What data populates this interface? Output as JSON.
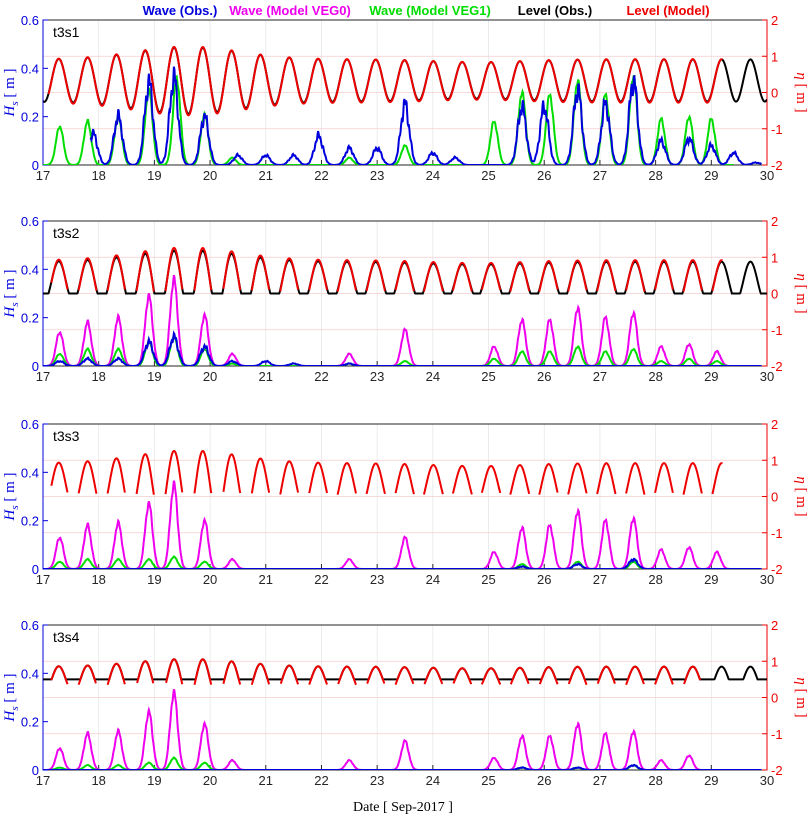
{
  "chart_data": {
    "type": "line",
    "legend": [
      {
        "label": "Wave (Obs.)",
        "color": "#0000dd"
      },
      {
        "label": "Wave (Model VEG0)",
        "color": "#ee00ee"
      },
      {
        "label": "Wave (Model VEG1)",
        "color": "#00dd00"
      },
      {
        "label": "Level (Obs.)",
        "color": "#000000"
      },
      {
        "label": "Level (Model)",
        "color": "#ee0000"
      }
    ],
    "xlabel": "Date [ Sep-2017 ]",
    "xlim": [
      17,
      30
    ],
    "xticks": [
      "17",
      "18",
      "19",
      "20",
      "21",
      "22",
      "23",
      "24",
      "25",
      "26",
      "27",
      "28",
      "29",
      "30"
    ],
    "ylabel_left": "H",
    "ylabel_left_sub": "s",
    "ylabel_left_unit": "[ m ]",
    "ylabel_right": "η",
    "ylabel_right_unit": "[ m ]",
    "ylim_left": [
      0,
      0.6
    ],
    "yticks_left": [
      "0",
      "0.2",
      "0.4",
      "0.6"
    ],
    "ylim_right": [
      -2,
      2
    ],
    "yticks_right": [
      "-2",
      "-1",
      "0",
      "1",
      "2"
    ],
    "grid": true,
    "panels": [
      {
        "title": "t3s1",
        "wave_obs_peaks": [
          {
            "x": 17.9,
            "h": 0.13
          },
          {
            "x": 18.35,
            "h": 0.2
          },
          {
            "x": 18.9,
            "h": 0.34
          },
          {
            "x": 19.35,
            "h": 0.36
          },
          {
            "x": 19.9,
            "h": 0.2
          },
          {
            "x": 20.5,
            "h": 0.04
          },
          {
            "x": 21.0,
            "h": 0.04
          },
          {
            "x": 21.5,
            "h": 0.04
          },
          {
            "x": 21.95,
            "h": 0.12
          },
          {
            "x": 22.5,
            "h": 0.07
          },
          {
            "x": 23.0,
            "h": 0.07
          },
          {
            "x": 23.5,
            "h": 0.25
          },
          {
            "x": 24.0,
            "h": 0.05
          },
          {
            "x": 24.4,
            "h": 0.03
          },
          {
            "x": 25.6,
            "h": 0.24
          },
          {
            "x": 26.0,
            "h": 0.24
          },
          {
            "x": 26.6,
            "h": 0.31
          },
          {
            "x": 27.1,
            "h": 0.25
          },
          {
            "x": 27.6,
            "h": 0.35
          },
          {
            "x": 28.1,
            "h": 0.1
          },
          {
            "x": 28.6,
            "h": 0.11
          },
          {
            "x": 29.0,
            "h": 0.08
          },
          {
            "x": 29.4,
            "h": 0.05
          },
          {
            "x": 29.8,
            "h": 0.01
          }
        ],
        "wave_veg1_peaks": [
          {
            "x": 17.3,
            "h": 0.16
          },
          {
            "x": 17.8,
            "h": 0.18
          },
          {
            "x": 18.35,
            "h": 0.2
          },
          {
            "x": 18.9,
            "h": 0.31
          },
          {
            "x": 19.4,
            "h": 0.36
          },
          {
            "x": 19.9,
            "h": 0.21
          },
          {
            "x": 20.4,
            "h": 0.03
          },
          {
            "x": 22.5,
            "h": 0.03
          },
          {
            "x": 23.5,
            "h": 0.08
          },
          {
            "x": 25.1,
            "h": 0.18
          },
          {
            "x": 25.6,
            "h": 0.3
          },
          {
            "x": 26.1,
            "h": 0.29
          },
          {
            "x": 26.6,
            "h": 0.35
          },
          {
            "x": 27.1,
            "h": 0.29
          },
          {
            "x": 27.6,
            "h": 0.37
          },
          {
            "x": 28.1,
            "h": 0.19
          },
          {
            "x": 28.6,
            "h": 0.2
          },
          {
            "x": 29.0,
            "h": 0.19
          }
        ],
        "wave_veg0_peaks": [],
        "level_obs": {
          "mode": "continuous",
          "end": 30.0
        },
        "level_model": {
          "mode": "continuous",
          "end": 29.2
        }
      },
      {
        "title": "t3s2",
        "wave_obs_peaks": [
          {
            "x": 17.3,
            "h": 0.02
          },
          {
            "x": 17.8,
            "h": 0.03
          },
          {
            "x": 18.35,
            "h": 0.03
          },
          {
            "x": 18.9,
            "h": 0.1
          },
          {
            "x": 19.35,
            "h": 0.12
          },
          {
            "x": 19.9,
            "h": 0.08
          },
          {
            "x": 20.4,
            "h": 0.02
          },
          {
            "x": 21.0,
            "h": 0.02
          },
          {
            "x": 21.5,
            "h": 0.01
          },
          {
            "x": 22.5,
            "h": 0.01
          }
        ],
        "wave_veg1_peaks": [
          {
            "x": 17.3,
            "h": 0.05
          },
          {
            "x": 17.8,
            "h": 0.07
          },
          {
            "x": 18.35,
            "h": 0.07
          },
          {
            "x": 18.9,
            "h": 0.1
          },
          {
            "x": 19.35,
            "h": 0.12
          },
          {
            "x": 19.9,
            "h": 0.07
          },
          {
            "x": 20.4,
            "h": 0.01
          },
          {
            "x": 22.5,
            "h": 0.01
          },
          {
            "x": 23.5,
            "h": 0.02
          },
          {
            "x": 25.1,
            "h": 0.03
          },
          {
            "x": 25.6,
            "h": 0.06
          },
          {
            "x": 26.1,
            "h": 0.06
          },
          {
            "x": 26.6,
            "h": 0.08
          },
          {
            "x": 27.1,
            "h": 0.06
          },
          {
            "x": 27.6,
            "h": 0.07
          },
          {
            "x": 28.1,
            "h": 0.02
          },
          {
            "x": 28.6,
            "h": 0.03
          },
          {
            "x": 29.1,
            "h": 0.02
          }
        ],
        "wave_veg0_peaks": [
          {
            "x": 17.3,
            "h": 0.14
          },
          {
            "x": 17.8,
            "h": 0.18
          },
          {
            "x": 18.35,
            "h": 0.2
          },
          {
            "x": 18.9,
            "h": 0.29
          },
          {
            "x": 19.35,
            "h": 0.36
          },
          {
            "x": 19.9,
            "h": 0.21
          },
          {
            "x": 20.4,
            "h": 0.05
          },
          {
            "x": 22.5,
            "h": 0.05
          },
          {
            "x": 23.5,
            "h": 0.15
          },
          {
            "x": 25.1,
            "h": 0.08
          },
          {
            "x": 25.6,
            "h": 0.19
          },
          {
            "x": 26.1,
            "h": 0.19
          },
          {
            "x": 26.6,
            "h": 0.24
          },
          {
            "x": 27.1,
            "h": 0.2
          },
          {
            "x": 27.6,
            "h": 0.22
          },
          {
            "x": 28.1,
            "h": 0.08
          },
          {
            "x": 28.6,
            "h": 0.09
          },
          {
            "x": 29.1,
            "h": 0.06
          }
        ],
        "level_obs": {
          "mode": "clipped",
          "floor": 0.0,
          "end": 30.0
        },
        "level_model": {
          "mode": "segments",
          "end": 29.2
        }
      },
      {
        "title": "t3s3",
        "wave_obs_peaks": [
          {
            "x": 25.6,
            "h": 0.01
          },
          {
            "x": 26.6,
            "h": 0.02
          },
          {
            "x": 27.6,
            "h": 0.04
          }
        ],
        "wave_veg1_peaks": [
          {
            "x": 17.3,
            "h": 0.03
          },
          {
            "x": 17.8,
            "h": 0.04
          },
          {
            "x": 18.35,
            "h": 0.04
          },
          {
            "x": 18.9,
            "h": 0.04
          },
          {
            "x": 19.35,
            "h": 0.05
          },
          {
            "x": 19.9,
            "h": 0.03
          },
          {
            "x": 25.6,
            "h": 0.02
          },
          {
            "x": 26.6,
            "h": 0.03
          },
          {
            "x": 27.6,
            "h": 0.03
          }
        ],
        "wave_veg0_peaks": [
          {
            "x": 17.3,
            "h": 0.13
          },
          {
            "x": 17.8,
            "h": 0.18
          },
          {
            "x": 18.35,
            "h": 0.19
          },
          {
            "x": 18.9,
            "h": 0.27
          },
          {
            "x": 19.35,
            "h": 0.35
          },
          {
            "x": 19.9,
            "h": 0.2
          },
          {
            "x": 20.4,
            "h": 0.04
          },
          {
            "x": 22.5,
            "h": 0.04
          },
          {
            "x": 23.5,
            "h": 0.13
          },
          {
            "x": 25.1,
            "h": 0.07
          },
          {
            "x": 25.6,
            "h": 0.17
          },
          {
            "x": 26.1,
            "h": 0.18
          },
          {
            "x": 26.6,
            "h": 0.24
          },
          {
            "x": 27.1,
            "h": 0.2
          },
          {
            "x": 27.6,
            "h": 0.21
          },
          {
            "x": 28.1,
            "h": 0.08
          },
          {
            "x": 28.6,
            "h": 0.09
          },
          {
            "x": 29.1,
            "h": 0.07
          }
        ],
        "level_obs": {
          "mode": "none",
          "end": 30.0
        },
        "level_model": {
          "mode": "segments",
          "end": 29.2
        }
      },
      {
        "title": "t3s4",
        "wave_obs_peaks": [
          {
            "x": 25.6,
            "h": 0.01
          },
          {
            "x": 26.6,
            "h": 0.01
          },
          {
            "x": 27.6,
            "h": 0.02
          }
        ],
        "wave_veg1_peaks": [
          {
            "x": 17.3,
            "h": 0.01
          },
          {
            "x": 17.8,
            "h": 0.02
          },
          {
            "x": 18.35,
            "h": 0.02
          },
          {
            "x": 18.9,
            "h": 0.03
          },
          {
            "x": 19.35,
            "h": 0.05
          },
          {
            "x": 19.9,
            "h": 0.03
          },
          {
            "x": 25.6,
            "h": 0.01
          },
          {
            "x": 26.6,
            "h": 0.01
          },
          {
            "x": 27.6,
            "h": 0.02
          }
        ],
        "wave_veg0_peaks": [
          {
            "x": 17.3,
            "h": 0.09
          },
          {
            "x": 17.8,
            "h": 0.15
          },
          {
            "x": 18.35,
            "h": 0.16
          },
          {
            "x": 18.9,
            "h": 0.24
          },
          {
            "x": 19.35,
            "h": 0.32
          },
          {
            "x": 19.9,
            "h": 0.19
          },
          {
            "x": 20.4,
            "h": 0.04
          },
          {
            "x": 22.5,
            "h": 0.04
          },
          {
            "x": 23.5,
            "h": 0.12
          },
          {
            "x": 25.1,
            "h": 0.05
          },
          {
            "x": 25.6,
            "h": 0.14
          },
          {
            "x": 26.1,
            "h": 0.14
          },
          {
            "x": 26.6,
            "h": 0.19
          },
          {
            "x": 27.1,
            "h": 0.15
          },
          {
            "x": 27.6,
            "h": 0.16
          },
          {
            "x": 28.1,
            "h": 0.04
          },
          {
            "x": 28.6,
            "h": 0.06
          }
        ],
        "level_obs": {
          "mode": "clipped",
          "floor": 0.5,
          "end": 30.0
        },
        "level_model": {
          "mode": "segments",
          "end": 28.8
        }
      }
    ]
  }
}
